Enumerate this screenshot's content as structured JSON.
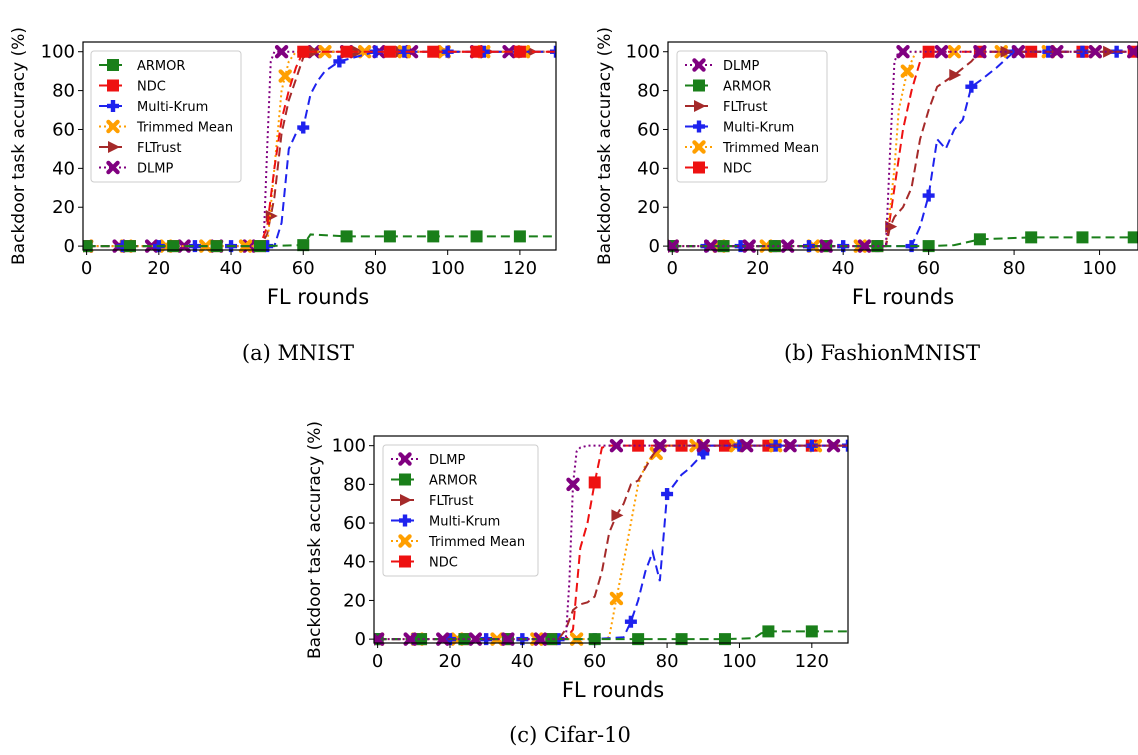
{
  "styles": {
    "ARMOR": {
      "color": "#1a7f1a",
      "dash": "9,5",
      "marker": "square-marker"
    },
    "NDC": {
      "color": "#ee1111",
      "dash": "9,5",
      "marker": "square-marker"
    },
    "Multi-Krum": {
      "color": "#1e22ee",
      "dash": "9,5",
      "marker": "plus-marker"
    },
    "Trimmed Mean": {
      "color": "#ff9f00",
      "dash": "2,3",
      "marker": "x-marker"
    },
    "FLTrust": {
      "color": "#a52a2a",
      "dash": "9,5",
      "marker": "triangle-right-marker"
    },
    "DLMP": {
      "color": "#800080",
      "dash": "2,3",
      "marker": "x-marker"
    }
  },
  "chart_data": [
    {
      "type": "line",
      "caption": "(a) MNIST",
      "xlabel": "FL rounds",
      "ylabel": "Backdoor task accuracy (%)",
      "xlim": [
        -1,
        130
      ],
      "ylim": [
        -2,
        105
      ],
      "xticks": [
        0,
        20,
        40,
        60,
        80,
        100,
        120
      ],
      "yticks": [
        0,
        20,
        40,
        60,
        80,
        100
      ],
      "legend": "upper-left",
      "series": [
        {
          "name": "ARMOR",
          "x": [
            0,
            12,
            24,
            36,
            48,
            60,
            62,
            72,
            84,
            96,
            108,
            120,
            130
          ],
          "y": [
            0,
            0,
            0,
            0,
            0,
            0.5,
            6,
            5,
            5,
            5,
            5,
            5,
            5
          ],
          "markers": [
            0,
            12,
            24,
            36,
            48,
            60,
            72,
            84,
            96,
            108,
            120
          ]
        },
        {
          "name": "NDC",
          "x": [
            0,
            12,
            24,
            36,
            48,
            50,
            52,
            54,
            56,
            58,
            60,
            72,
            84,
            96,
            108,
            120,
            130
          ],
          "y": [
            0,
            0,
            0,
            0,
            0,
            10,
            40,
            65,
            80,
            92,
            100,
            100,
            100,
            100,
            100,
            100,
            100
          ],
          "markers": [
            0,
            12,
            24,
            36,
            48,
            60,
            72,
            84,
            96,
            108,
            120
          ]
        },
        {
          "name": "Multi-Krum",
          "x": [
            0,
            10,
            20,
            30,
            40,
            50,
            52,
            54,
            56,
            58,
            60,
            62,
            64,
            66,
            70,
            78,
            80,
            88,
            100,
            110,
            120,
            130
          ],
          "y": [
            0,
            0,
            0,
            0,
            0,
            0,
            0,
            12,
            50,
            58,
            61,
            78,
            85,
            90,
            95,
            99,
            100,
            100,
            100,
            100,
            100,
            100
          ],
          "markers": [
            0,
            10,
            20,
            30,
            40,
            50,
            60,
            70,
            80,
            88,
            100,
            110,
            120,
            130
          ]
        },
        {
          "name": "Trimmed Mean",
          "x": [
            0,
            11,
            22,
            33,
            44,
            50,
            52,
            54,
            56,
            58,
            66,
            77,
            88,
            99,
            110,
            121,
            130
          ],
          "y": [
            0,
            0,
            0,
            0,
            0,
            0,
            40,
            80,
            95,
            100,
            100,
            100,
            100,
            100,
            100,
            100,
            100
          ],
          "markers": [
            0,
            11,
            22,
            33,
            44,
            55,
            66,
            77,
            88,
            99,
            110,
            121
          ]
        },
        {
          "name": "FLTrust",
          "x": [
            0,
            12,
            24,
            36,
            48,
            50,
            52,
            54,
            56,
            60,
            63,
            72,
            84,
            96,
            108,
            120,
            130
          ],
          "y": [
            0,
            0,
            0,
            0,
            0,
            6,
            25,
            58,
            75,
            97,
            100,
            100,
            100,
            100,
            100,
            100,
            100
          ],
          "markers": [
            0,
            12,
            24,
            36,
            51,
            63,
            75,
            87,
            99,
            111,
            123
          ]
        },
        {
          "name": "DLMP",
          "x": [
            0,
            9,
            18,
            27,
            36,
            45,
            49,
            50,
            51,
            52,
            54,
            63,
            72,
            81,
            90,
            99,
            108,
            117,
            130
          ],
          "y": [
            0,
            0,
            0,
            0,
            0,
            0,
            0,
            50,
            95,
            100,
            100,
            100,
            100,
            100,
            100,
            100,
            100,
            100,
            100
          ],
          "markers": [
            0,
            9,
            18,
            27,
            36,
            45,
            54,
            63,
            72,
            81,
            90,
            99,
            108,
            117
          ]
        }
      ]
    },
    {
      "type": "line",
      "caption": "(b) FashionMNIST",
      "xlabel": "FL rounds",
      "ylabel": "Backdoor task accuracy (%)",
      "xlim": [
        -1,
        109
      ],
      "ylim": [
        -2,
        105
      ],
      "xticks": [
        0,
        20,
        40,
        60,
        80,
        100
      ],
      "yticks": [
        0,
        20,
        40,
        60,
        80,
        100
      ],
      "legend": "upper-left",
      "series": [
        {
          "name": "DLMP",
          "x": [
            0,
            9,
            18,
            27,
            36,
            45,
            50,
            51,
            52,
            53,
            54,
            63,
            72,
            81,
            90,
            99,
            109
          ],
          "y": [
            0,
            0,
            0,
            0,
            0,
            0,
            0,
            50,
            95,
            100,
            100,
            100,
            100,
            100,
            100,
            100,
            100
          ],
          "markers": [
            0,
            9,
            18,
            27,
            36,
            45,
            54,
            63,
            72,
            81,
            90,
            99,
            108
          ]
        },
        {
          "name": "ARMOR",
          "x": [
            0,
            12,
            24,
            36,
            48,
            60,
            66,
            72,
            84,
            96,
            109
          ],
          "y": [
            0,
            0,
            0,
            0,
            0,
            0,
            0.5,
            3.5,
            4.5,
            4.5,
            4.5
          ],
          "markers": [
            0,
            12,
            24,
            36,
            48,
            60,
            72,
            84,
            96,
            108
          ]
        },
        {
          "name": "FLTrust",
          "x": [
            0,
            12,
            24,
            36,
            48,
            50,
            51,
            52,
            54,
            56,
            58,
            60,
            62,
            64,
            66,
            70,
            72,
            84,
            96,
            109
          ],
          "y": [
            0,
            0,
            0,
            0,
            0,
            0,
            10,
            15,
            20,
            30,
            55,
            70,
            82,
            85,
            88,
            95,
            100,
            100,
            100,
            100
          ],
          "markers": [
            0,
            12,
            24,
            36,
            48,
            51,
            66,
            78,
            90,
            102
          ]
        },
        {
          "name": "Multi-Krum",
          "x": [
            0,
            8,
            16,
            24,
            32,
            40,
            48,
            56,
            58,
            60,
            62,
            64,
            66,
            68,
            70,
            72,
            76,
            80,
            88,
            96,
            104,
            109
          ],
          "y": [
            0,
            0,
            0,
            0,
            0,
            0,
            0,
            0,
            10,
            26,
            55,
            50,
            60,
            65,
            82,
            85,
            92,
            100,
            100,
            100,
            100,
            100
          ],
          "markers": [
            0,
            8,
            16,
            24,
            32,
            40,
            48,
            56,
            60,
            70,
            80,
            88,
            96,
            104
          ]
        },
        {
          "name": "Trimmed Mean",
          "x": [
            0,
            11,
            22,
            33,
            44,
            50,
            52,
            53,
            55,
            57,
            66,
            77,
            88,
            99,
            109
          ],
          "y": [
            0,
            0,
            0,
            0,
            0,
            0,
            40,
            70,
            90,
            100,
            100,
            100,
            100,
            100,
            100
          ],
          "markers": [
            0,
            11,
            22,
            33,
            44,
            55,
            66,
            77,
            88,
            99
          ]
        },
        {
          "name": "NDC",
          "x": [
            0,
            12,
            24,
            36,
            48,
            50,
            52,
            54,
            56,
            58,
            60,
            72,
            84,
            96,
            109
          ],
          "y": [
            0,
            0,
            0,
            0,
            0,
            0,
            30,
            60,
            80,
            95,
            100,
            100,
            100,
            100,
            100
          ],
          "markers": [
            0,
            12,
            24,
            36,
            48,
            60,
            72,
            84,
            96,
            108
          ]
        }
      ]
    },
    {
      "type": "line",
      "caption": "(c) Cifar-10",
      "xlabel": "FL rounds",
      "ylabel": "Backdoor task accuracy (%)",
      "xlim": [
        -1,
        130
      ],
      "ylim": [
        -2,
        105
      ],
      "xticks": [
        0,
        20,
        40,
        60,
        80,
        100,
        120
      ],
      "yticks": [
        0,
        20,
        40,
        60,
        80,
        100
      ],
      "legend": "upper-left",
      "series": [
        {
          "name": "DLMP",
          "x": [
            0,
            9,
            18,
            27,
            36,
            45,
            52,
            53,
            54,
            55,
            56,
            58,
            66,
            78,
            90,
            102,
            114,
            126,
            130
          ],
          "y": [
            0,
            0,
            0,
            0,
            0,
            0,
            0,
            30,
            80,
            97,
            99,
            100,
            100,
            100,
            100,
            100,
            100,
            100,
            100
          ],
          "markers": [
            0,
            9,
            18,
            27,
            36,
            45,
            54,
            66,
            78,
            90,
            102,
            114,
            126
          ]
        },
        {
          "name": "ARMOR",
          "x": [
            0,
            12,
            24,
            36,
            48,
            60,
            72,
            84,
            96,
            104,
            106,
            108,
            120,
            130
          ],
          "y": [
            0,
            0,
            0,
            0,
            0,
            0,
            0,
            0,
            0,
            0.5,
            3,
            4,
            4,
            4
          ],
          "markers": [
            0,
            12,
            24,
            36,
            48,
            60,
            72,
            84,
            96,
            108,
            120
          ]
        },
        {
          "name": "FLTrust",
          "x": [
            0,
            12,
            24,
            36,
            48,
            50,
            52,
            54,
            56,
            58,
            60,
            62,
            64,
            66,
            68,
            70,
            72,
            76,
            78,
            90,
            102,
            114,
            126,
            130
          ],
          "y": [
            0,
            0,
            0,
            0,
            0,
            0,
            5,
            15,
            18,
            19,
            22,
            35,
            55,
            64,
            70,
            80,
            82,
            95,
            100,
            100,
            100,
            100,
            100,
            100
          ],
          "markers": [
            0,
            12,
            24,
            36,
            48,
            66,
            78,
            90,
            102,
            114,
            126
          ]
        },
        {
          "name": "Multi-Krum",
          "x": [
            0,
            10,
            20,
            30,
            40,
            50,
            60,
            68,
            70,
            72,
            74,
            76,
            78,
            80,
            82,
            84,
            86,
            88,
            90,
            92,
            100,
            110,
            120,
            130
          ],
          "y": [
            0,
            0,
            0,
            0,
            0,
            0,
            0,
            1,
            9,
            20,
            35,
            45,
            30,
            75,
            80,
            85,
            88,
            92,
            96,
            100,
            100,
            100,
            100,
            100
          ],
          "markers": [
            0,
            10,
            20,
            30,
            40,
            50,
            60,
            70,
            80,
            90,
            100,
            110,
            120,
            130
          ]
        },
        {
          "name": "Trimmed Mean",
          "x": [
            0,
            11,
            22,
            33,
            44,
            55,
            62,
            64,
            66,
            68,
            70,
            72,
            74,
            76,
            78,
            80,
            88,
            99,
            110,
            121,
            130
          ],
          "y": [
            0,
            0,
            0,
            0,
            0,
            0,
            0,
            1,
            21,
            40,
            60,
            80,
            90,
            95,
            97,
            100,
            100,
            100,
            100,
            100,
            100
          ],
          "markers": [
            0,
            11,
            22,
            33,
            44,
            55,
            66,
            77,
            88,
            99,
            110,
            121
          ]
        },
        {
          "name": "NDC",
          "x": [
            0,
            12,
            24,
            36,
            48,
            52,
            54,
            56,
            58,
            60,
            62,
            64,
            72,
            84,
            96,
            108,
            120,
            130
          ],
          "y": [
            0,
            0,
            0,
            0,
            0,
            0,
            5,
            47,
            60,
            81,
            99,
            100,
            100,
            100,
            100,
            100,
            100,
            100
          ],
          "markers": [
            0,
            12,
            24,
            36,
            48,
            60,
            72,
            84,
            96,
            108,
            120
          ]
        }
      ]
    }
  ]
}
